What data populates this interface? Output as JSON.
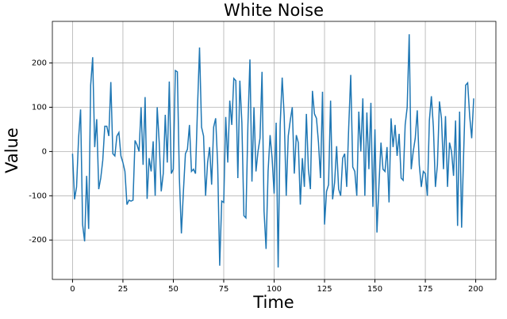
{
  "chart_data": {
    "type": "line",
    "title": "White Noise",
    "xlabel": "Time",
    "ylabel": "Value",
    "x": [
      0,
      1,
      2,
      3,
      4,
      5,
      6,
      7,
      8,
      9,
      10,
      11,
      12,
      13,
      14,
      15,
      16,
      17,
      18,
      19,
      20,
      21,
      22,
      23,
      24,
      25,
      26,
      27,
      28,
      29,
      30,
      31,
      32,
      33,
      34,
      35,
      36,
      37,
      38,
      39,
      40,
      41,
      42,
      43,
      44,
      45,
      46,
      47,
      48,
      49,
      50,
      51,
      52,
      53,
      54,
      55,
      56,
      57,
      58,
      59,
      60,
      61,
      62,
      63,
      64,
      65,
      66,
      67,
      68,
      69,
      70,
      71,
      72,
      73,
      74,
      75,
      76,
      77,
      78,
      79,
      80,
      81,
      82,
      83,
      84,
      85,
      86,
      87,
      88,
      89,
      90,
      91,
      92,
      93,
      94,
      95,
      96,
      97,
      98,
      99,
      100,
      101,
      102,
      103,
      104,
      105,
      106,
      107,
      108,
      109,
      110,
      111,
      112,
      113,
      114,
      115,
      116,
      117,
      118,
      119,
      120,
      121,
      122,
      123,
      124,
      125,
      126,
      127,
      128,
      129,
      130,
      131,
      132,
      133,
      134,
      135,
      136,
      137,
      138,
      139,
      140,
      141,
      142,
      143,
      144,
      145,
      146,
      147,
      148,
      149,
      150,
      151,
      152,
      153,
      154,
      155,
      156,
      157,
      158,
      159,
      160,
      161,
      162,
      163,
      164,
      165,
      166,
      167,
      168,
      169,
      170,
      171,
      172,
      173,
      174,
      175,
      176,
      177,
      178,
      179,
      180,
      181,
      182,
      183,
      184,
      185,
      186,
      187,
      188,
      189,
      190,
      191,
      192,
      193,
      194,
      195,
      196,
      197,
      198,
      199
    ],
    "series": [
      {
        "color": "#1f77b4",
        "values": [
          -5,
          -108,
          -80,
          30,
          95,
          -165,
          -203,
          -55,
          -175,
          150,
          213,
          10,
          73,
          -85,
          -60,
          -20,
          57,
          57,
          35,
          157,
          -5,
          -10,
          35,
          43,
          -10,
          -25,
          -45,
          -120,
          -110,
          -112,
          -110,
          25,
          15,
          0,
          100,
          -30,
          123,
          -107,
          -15,
          -45,
          23,
          -100,
          100,
          20,
          -90,
          -50,
          83,
          -25,
          158,
          -50,
          -40,
          183,
          180,
          -60,
          -185,
          -90,
          -5,
          5,
          60,
          -45,
          -40,
          -50,
          100,
          235,
          55,
          35,
          -100,
          -25,
          10,
          -75,
          55,
          75,
          -30,
          -258,
          -112,
          -115,
          78,
          -25,
          115,
          60,
          165,
          160,
          -60,
          160,
          65,
          -145,
          -150,
          60,
          208,
          -68,
          100,
          -45,
          0,
          30,
          180,
          -135,
          -220,
          -45,
          37,
          -15,
          -95,
          65,
          -262,
          60,
          167,
          80,
          -100,
          35,
          70,
          100,
          -50,
          37,
          20,
          -120,
          -15,
          -80,
          85,
          -40,
          -85,
          137,
          85,
          75,
          20,
          -60,
          135,
          -165,
          -90,
          -75,
          115,
          -108,
          -70,
          12,
          -85,
          -100,
          -15,
          -5,
          -80,
          55,
          173,
          -35,
          -45,
          -100,
          90,
          0,
          120,
          -100,
          88,
          -40,
          110,
          -125,
          50,
          -183,
          -75,
          20,
          -40,
          -45,
          10,
          -115,
          75,
          10,
          60,
          -10,
          40,
          -60,
          -65,
          60,
          100,
          265,
          -40,
          0,
          30,
          93,
          -30,
          -80,
          -45,
          -50,
          -100,
          70,
          125,
          55,
          -80,
          -30,
          113,
          75,
          -40,
          80,
          -80,
          20,
          0,
          -55,
          70,
          -168,
          90,
          -172,
          -5,
          150,
          155,
          80,
          30,
          120
        ]
      }
    ],
    "xlim": [
      -10,
      210
    ],
    "ylim": [
      -289,
      294
    ],
    "xticks": [
      0,
      25,
      50,
      75,
      100,
      125,
      150,
      175,
      200
    ],
    "yticks": [
      -200,
      -100,
      0,
      100,
      200
    ],
    "grid": true
  }
}
